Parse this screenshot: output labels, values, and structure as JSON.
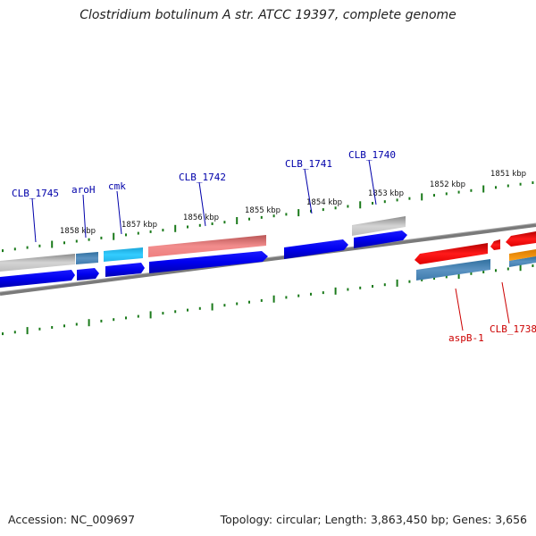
{
  "title": "Clostridium botulinum A str. ATCC 19397, complete genome",
  "footer": {
    "accession": "Accession: NC_009697",
    "summary": "Topology: circular; Length: 3,863,450 bp; Genes: 3,656"
  },
  "colors": {
    "label_blue": "#0000aa",
    "label_red": "#cc0000",
    "tick_green": "#1a7a1a",
    "backbone": "#7a7a7a"
  },
  "kbp_labels": [
    {
      "text": "1858 kbp",
      "kbp": 1858
    },
    {
      "text": "1857 kbp",
      "kbp": 1857
    },
    {
      "text": "1856 kbp",
      "kbp": 1856
    },
    {
      "text": "1855 kbp",
      "kbp": 1855
    },
    {
      "text": "1854 kbp",
      "kbp": 1854
    },
    {
      "text": "1853 kbp",
      "kbp": 1853
    },
    {
      "text": "1852 kbp",
      "kbp": 1852
    },
    {
      "text": "1851 kbp",
      "kbp": 1851
    }
  ],
  "gene_labels": [
    {
      "id": "CLB_1745",
      "text": "CLB_1745",
      "strand": "forward"
    },
    {
      "id": "aroH",
      "text": "aroH",
      "strand": "forward"
    },
    {
      "id": "cmk",
      "text": "cmk",
      "strand": "forward"
    },
    {
      "id": "CLB_1742",
      "text": "CLB_1742",
      "strand": "forward"
    },
    {
      "id": "CLB_1741",
      "text": "CLB_1741",
      "strand": "forward"
    },
    {
      "id": "CLB_1740",
      "text": "CLB_1740",
      "strand": "forward"
    },
    {
      "id": "aspB-1",
      "text": "aspB-1",
      "strand": "reverse"
    },
    {
      "id": "CLB_1738",
      "text": "CLB_1738",
      "strand": "reverse"
    }
  ]
}
